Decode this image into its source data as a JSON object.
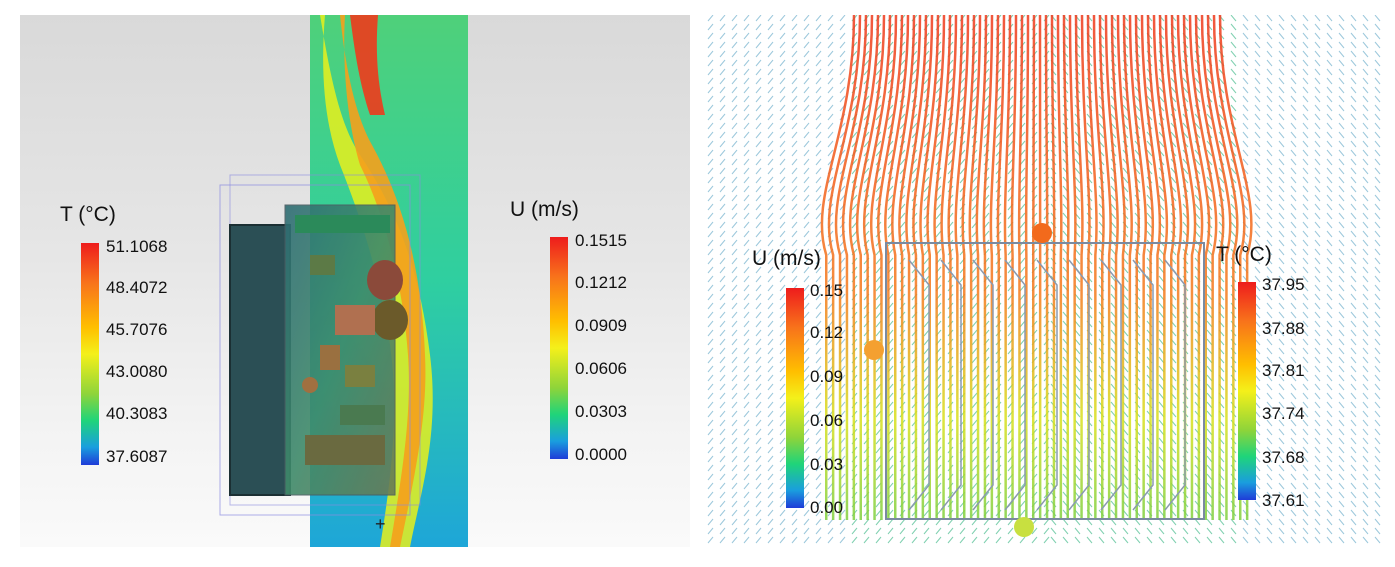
{
  "left_panel": {
    "temperature_legend": {
      "title": "T (°C)",
      "ticks": [
        "51.1068",
        "48.4072",
        "45.7076",
        "43.0080",
        "40.3083",
        "37.6087"
      ]
    },
    "velocity_legend": {
      "title": "U (m/s)",
      "ticks": [
        "0.1515",
        "0.1212",
        "0.0909",
        "0.0606",
        "0.0303",
        "0.0000"
      ]
    }
  },
  "right_panel": {
    "velocity_legend": {
      "title": "U (m/s)",
      "ticks": [
        "0.15",
        "0.12",
        "0.09",
        "0.06",
        "0.03",
        "0.00"
      ]
    },
    "temperature_legend": {
      "title": "T (°C)",
      "ticks": [
        "37.95",
        "37.88",
        "37.81",
        "37.74",
        "37.68",
        "37.61"
      ]
    }
  },
  "colors": {
    "scale_high": "#ee1c1c",
    "scale_mid": "#f4f01a",
    "scale_low": "#1f3cd8"
  }
}
